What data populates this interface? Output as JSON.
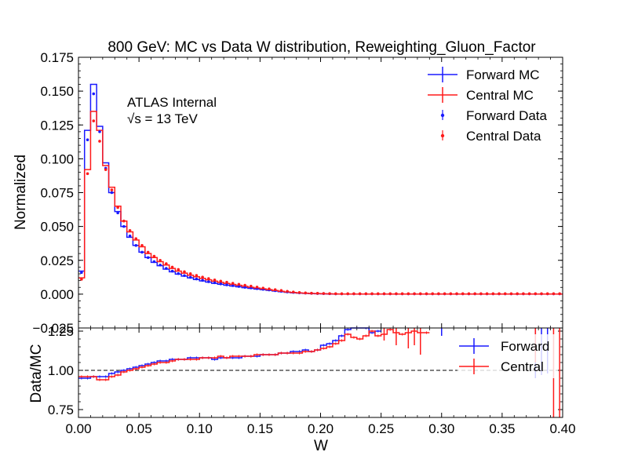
{
  "colors": {
    "forward": "#1a1aff",
    "central": "#ff1a1a",
    "reference": "#000000"
  },
  "chart_data": [
    {
      "type": "line",
      "title": "800 GeV: MC vs Data W distribution, Reweighting_Gluon_Factor",
      "xlabel": "",
      "ylabel": "Normalized",
      "xlim": [
        0.0,
        0.4
      ],
      "ylim": [
        -0.025,
        0.175
      ],
      "yticks": [
        "−0.025",
        "0.000",
        "0.025",
        "0.050",
        "0.075",
        "0.100",
        "0.125",
        "0.150",
        "0.175"
      ],
      "annotation": {
        "experiment": "ATLAS Internal",
        "energy": "√s = 13 TeV"
      },
      "legend": [
        "Forward MC",
        "Central MC",
        "Forward Data",
        "Central Data"
      ],
      "legend_position": "top-right",
      "bin_edges": [
        0.0,
        0.005,
        0.01,
        0.015,
        0.02,
        0.025,
        0.03,
        0.035,
        0.04,
        0.045,
        0.05,
        0.055,
        0.06,
        0.065,
        0.07,
        0.075,
        0.08,
        0.085,
        0.09,
        0.095,
        0.1,
        0.105,
        0.11,
        0.115,
        0.12,
        0.125,
        0.13,
        0.135,
        0.14,
        0.145,
        0.15,
        0.155,
        0.16,
        0.165,
        0.17,
        0.175,
        0.18,
        0.185,
        0.19,
        0.195,
        0.2,
        0.205,
        0.21,
        0.215,
        0.22,
        0.225,
        0.23,
        0.235,
        0.24,
        0.245,
        0.25,
        0.255,
        0.26,
        0.265,
        0.27,
        0.275,
        0.28,
        0.285,
        0.29,
        0.295,
        0.3,
        0.305,
        0.31,
        0.315,
        0.32,
        0.325,
        0.33,
        0.335,
        0.34,
        0.345,
        0.35,
        0.355,
        0.36,
        0.365,
        0.37,
        0.375,
        0.38,
        0.385,
        0.39,
        0.395,
        0.4
      ],
      "series": [
        {
          "name": "Forward MC",
          "style": "step",
          "values": [
            0.017,
            0.121,
            0.155,
            0.124,
            0.097,
            0.075,
            0.061,
            0.05,
            0.042,
            0.036,
            0.031,
            0.027,
            0.0235,
            0.021,
            0.0185,
            0.0165,
            0.0148,
            0.0133,
            0.012,
            0.0108,
            0.0098,
            0.0089,
            0.008,
            0.0073,
            0.0066,
            0.006,
            0.0054,
            0.0048,
            0.0043,
            0.0038,
            0.0033,
            0.0028,
            0.0023,
            0.0018,
            0.0014,
            0.001,
            0.0008,
            0.0006,
            0.0004,
            0.0003,
            0.0002,
            0.00015,
            0.0001,
            0.0001,
            0.0001,
            0.0001,
            0.0001,
            0.0001,
            0.0001,
            0.0001,
            0.0001,
            0.0001,
            0.0001,
            0.0001,
            0.0001,
            0.0001,
            0.0001,
            0.0001,
            0.0001,
            0.0001,
            0.0001,
            0.0001,
            0.0001,
            0.0001,
            0.0001,
            0.0001,
            0.0001,
            0.0001,
            0.0001,
            0.0001,
            0.0001,
            0.0001,
            0.0001,
            0.0001,
            0.0001,
            0.0001,
            0.0001,
            0.0001,
            0.0001,
            0.0001
          ]
        },
        {
          "name": "Central MC",
          "style": "step",
          "values": [
            0.012,
            0.092,
            0.135,
            0.121,
            0.095,
            0.079,
            0.065,
            0.054,
            0.046,
            0.04,
            0.035,
            0.03,
            0.027,
            0.024,
            0.0215,
            0.019,
            0.017,
            0.0155,
            0.014,
            0.0128,
            0.0117,
            0.0106,
            0.0096,
            0.0087,
            0.0079,
            0.0072,
            0.0065,
            0.0058,
            0.0051,
            0.0045,
            0.0039,
            0.0033,
            0.0027,
            0.0021,
            0.0016,
            0.0012,
            0.0009,
            0.0007,
            0.0005,
            0.0004,
            0.0003,
            0.0002,
            0.00015,
            0.0001,
            0.0001,
            0.0001,
            0.0001,
            0.0001,
            0.0001,
            0.0001,
            0.0001,
            0.0001,
            0.0001,
            0.0001,
            0.0001,
            0.0001,
            0.0001,
            0.0001,
            0.0001,
            0.0001,
            0.0001,
            0.0001,
            0.0001,
            0.0001,
            0.0001,
            0.0001,
            0.0001,
            0.0001,
            0.0001,
            0.0001,
            0.0001,
            0.0001,
            0.0001,
            0.0001,
            0.0001,
            0.0001,
            0.0001,
            0.0001,
            0.0001,
            0.0001
          ]
        },
        {
          "name": "Forward Data",
          "style": "points",
          "values": [
            0.016,
            0.114,
            0.148,
            0.12,
            0.093,
            0.075,
            0.06,
            0.05,
            0.043,
            0.036,
            0.031,
            0.027,
            0.024,
            0.0215,
            0.019,
            0.017,
            0.0152,
            0.0137,
            0.0124,
            0.0112,
            0.0102,
            0.0092,
            0.0084,
            0.0076,
            0.0069,
            0.0063,
            0.0057,
            0.0051,
            0.0046,
            0.0041,
            0.0036,
            0.0031,
            0.0026,
            0.0021,
            0.0017,
            0.0013,
            0.001,
            0.0008,
            0.0006,
            0.0005,
            0.0004,
            0.0003,
            0.0002,
            0.0002,
            0.0002,
            0.0002,
            0.0002,
            0.0002,
            0.0002,
            0.0002,
            0.0002,
            0.0002,
            0.0002,
            0.0002,
            0.0002,
            0.0002,
            0.0002,
            0.0002,
            0.0002,
            0.0002,
            0.0002,
            0.0002,
            0.0002,
            0.0002,
            0.0002,
            0.0002,
            0.0002,
            0.0002,
            0.0002,
            0.0002,
            0.0002,
            0.0002,
            0.0002,
            0.0002,
            0.0002,
            0.0002,
            0.0002,
            0.0002,
            0.0002,
            0.0002
          ]
        },
        {
          "name": "Central Data",
          "style": "points",
          "values": [
            0.011,
            0.089,
            0.128,
            0.113,
            0.092,
            0.077,
            0.064,
            0.054,
            0.047,
            0.041,
            0.036,
            0.031,
            0.028,
            0.025,
            0.0225,
            0.02,
            0.0182,
            0.0166,
            0.0151,
            0.0138,
            0.0126,
            0.0115,
            0.0105,
            0.0096,
            0.0088,
            0.008,
            0.0073,
            0.0066,
            0.0059,
            0.0052,
            0.0045,
            0.0039,
            0.0033,
            0.0027,
            0.0021,
            0.0016,
            0.0012,
            0.0009,
            0.0007,
            0.0006,
            0.0005,
            0.0004,
            0.0003,
            0.0003,
            0.0003,
            0.0003,
            0.0003,
            0.0003,
            0.0003,
            0.0003,
            0.0003,
            0.0003,
            0.0003,
            0.0003,
            0.0003,
            0.0003,
            0.0003,
            0.0003,
            0.0003,
            0.0003,
            0.0003,
            0.0003,
            0.0003,
            0.0003,
            0.0003,
            0.0003,
            0.0003,
            0.0003,
            0.0003,
            0.0003,
            0.0003,
            0.0003,
            0.0003,
            0.0003,
            0.0003,
            0.0003,
            0.0003,
            0.0003,
            0.0003,
            0.0003
          ]
        }
      ]
    },
    {
      "type": "line",
      "title": "",
      "xlabel": "W",
      "ylabel": "Data/MC",
      "xlim": [
        0.0,
        0.4
      ],
      "ylim": [
        0.7,
        1.27
      ],
      "xticks": [
        "0.00",
        "0.05",
        "0.10",
        "0.15",
        "0.20",
        "0.25",
        "0.30",
        "0.35",
        "0.40"
      ],
      "yticks": [
        "0.75",
        "1.00",
        "1.25"
      ],
      "reference_line": 1.0,
      "legend": [
        "Forward",
        "Central"
      ],
      "legend_position": "top-right",
      "series": [
        {
          "name": "Forward",
          "style": "step",
          "values": [
            0.95,
            0.95,
            0.96,
            0.96,
            0.96,
            0.98,
            0.99,
            1.0,
            1.01,
            1.02,
            1.03,
            1.04,
            1.05,
            1.06,
            1.06,
            1.07,
            1.07,
            1.07,
            1.08,
            1.08,
            1.08,
            1.08,
            1.07,
            1.08,
            1.08,
            1.08,
            1.08,
            1.09,
            1.09,
            1.09,
            1.1,
            1.1,
            1.1,
            1.11,
            1.11,
            1.12,
            1.12,
            1.13,
            1.12,
            1.13,
            1.16,
            1.17,
            1.19,
            1.22,
            1.26,
            1.3,
            1.28,
            1.27,
            1.24,
            1.25,
            null,
            null,
            null,
            null,
            null,
            null,
            null,
            null,
            null,
            null,
            null,
            null,
            null,
            null,
            null,
            null,
            null,
            null,
            null,
            null,
            null,
            null,
            null,
            null,
            null,
            null,
            null,
            null,
            null,
            null
          ],
          "error_bars": [
            [
              0.3,
              1.22,
              1.3
            ],
            [
              0.3575,
              1.27,
              1.3
            ],
            [
              0.3775,
              0.95,
              1.3
            ],
            [
              0.3825,
              0.97,
              1.3
            ],
            [
              0.3875,
              0.98,
              1.3
            ]
          ]
        },
        {
          "name": "Central",
          "style": "step",
          "values": [
            0.96,
            0.96,
            0.96,
            0.94,
            0.94,
            0.96,
            0.97,
            0.99,
            1.0,
            1.01,
            1.02,
            1.03,
            1.04,
            1.05,
            1.05,
            1.06,
            1.07,
            1.07,
            1.07,
            1.07,
            1.08,
            1.08,
            1.08,
            1.09,
            1.08,
            1.09,
            1.09,
            1.09,
            1.09,
            1.1,
            1.1,
            1.1,
            1.1,
            1.11,
            1.11,
            1.11,
            1.11,
            1.12,
            1.12,
            1.13,
            1.14,
            1.15,
            1.17,
            1.19,
            1.23,
            1.21,
            1.2,
            1.22,
            1.25,
            1.22,
            1.23,
            1.26,
            1.24,
            1.23,
            1.24,
            1.25,
            1.24,
            1.24,
            null,
            null,
            null,
            null,
            null,
            null,
            null,
            null,
            null,
            null,
            null,
            null,
            null,
            null,
            null,
            null,
            null,
            null,
            null,
            null,
            null,
            null
          ],
          "error_bars": [
            [
              0.2525,
              1.19,
              1.3
            ],
            [
              0.2625,
              1.16,
              1.3
            ],
            [
              0.2725,
              1.14,
              1.3
            ],
            [
              0.2775,
              1.16,
              1.3
            ],
            [
              0.2825,
              1.1,
              1.3
            ],
            [
              0.3775,
              1.05,
              1.3
            ],
            [
              0.3925,
              0.7,
              1.3
            ],
            [
              0.3975,
              0.7,
              1.3
            ]
          ]
        }
      ]
    }
  ]
}
